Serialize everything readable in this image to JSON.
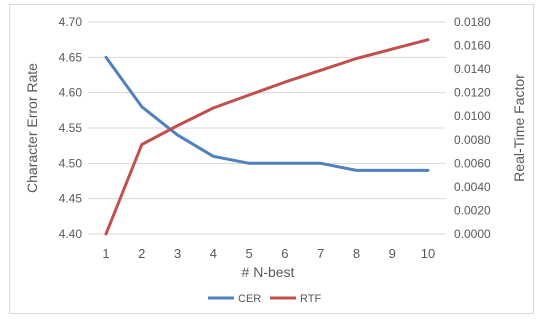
{
  "chart_data": {
    "type": "line",
    "title": "",
    "xlabel": "# N-best",
    "ylabel": "Character Error Rate",
    "y2label": "Real-Time Factor",
    "x": [
      1,
      2,
      3,
      4,
      5,
      6,
      7,
      8,
      9,
      10
    ],
    "x_tick_labels": [
      "1",
      "2",
      "3",
      "4",
      "5",
      "6",
      "7",
      "8",
      "9",
      "10"
    ],
    "ylim": [
      4.4,
      4.7
    ],
    "y_tick_labels": [
      "4.40",
      "4.45",
      "4.50",
      "4.55",
      "4.60",
      "4.65",
      "4.70"
    ],
    "y2lim": [
      0.0,
      0.018
    ],
    "y2_tick_labels": [
      "0.0000",
      "0.0020",
      "0.0040",
      "0.0060",
      "0.0080",
      "0.0100",
      "0.0120",
      "0.0140",
      "0.0160",
      "0.0180"
    ],
    "grid": true,
    "legend_position": "bottom",
    "series": [
      {
        "name": "CER",
        "axis": "left",
        "color": "#4f81bd",
        "values": [
          4.65,
          4.58,
          4.54,
          4.51,
          4.5,
          4.5,
          4.5,
          4.49,
          4.49,
          4.49
        ]
      },
      {
        "name": "RTF",
        "axis": "right",
        "color": "#c0504d",
        "values": [
          0.0,
          0.0076,
          0.0092,
          0.0107,
          0.0118,
          0.0129,
          0.0139,
          0.0149,
          0.0157,
          0.0165
        ]
      }
    ]
  }
}
